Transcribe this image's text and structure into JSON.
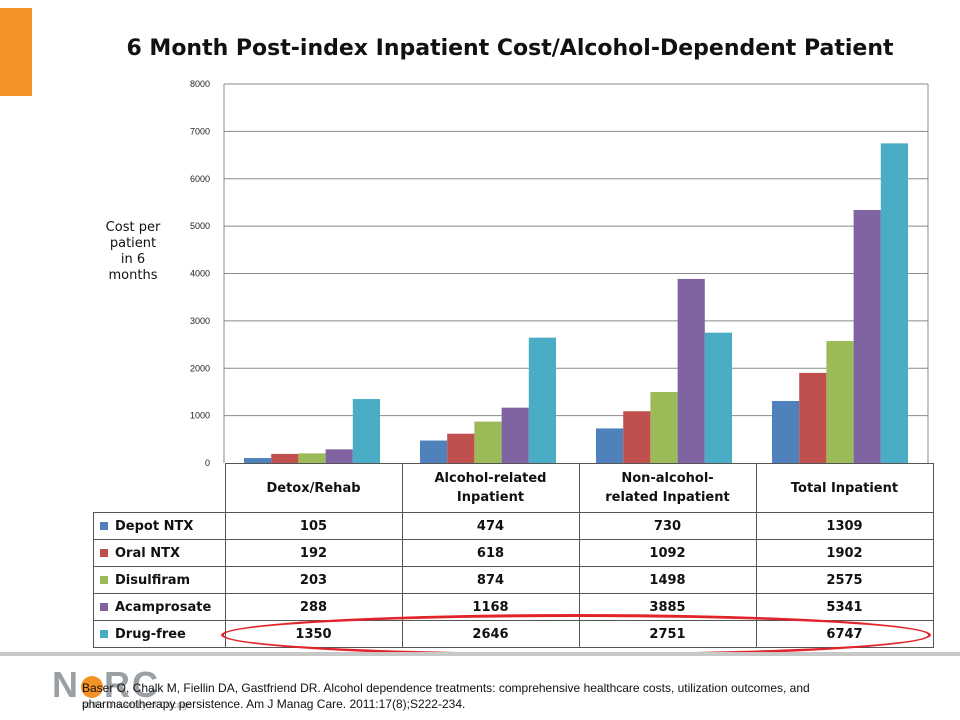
{
  "chart_data": {
    "type": "bar",
    "title": "6 Month Post-index Inpatient Cost/Alcohol-Dependent Patient",
    "ylabel": [
      "Cost per",
      "patient",
      "in 6 months"
    ],
    "xlabel": "",
    "ylim": [
      0,
      8000
    ],
    "yticks": [
      0,
      1000,
      2000,
      3000,
      4000,
      5000,
      6000,
      7000,
      8000
    ],
    "grid": true,
    "legend": "data table below chart",
    "categories": [
      [
        "Detox/Rehab"
      ],
      [
        "Alcohol-related",
        "Inpatient"
      ],
      [
        "Non-alcohol-",
        "related Inpatient"
      ],
      [
        "Total Inpatient"
      ]
    ],
    "series": [
      {
        "name": "Depot NTX",
        "color": "#4f81bd",
        "values": [
          105,
          474,
          730,
          1309
        ]
      },
      {
        "name": "Oral NTX",
        "color": "#c0504d",
        "values": [
          192,
          618,
          1092,
          1902
        ]
      },
      {
        "name": "Disulfiram",
        "color": "#9bbb59",
        "values": [
          203,
          874,
          1498,
          2575
        ]
      },
      {
        "name": "Acamprosate",
        "color": "#8064a2",
        "values": [
          288,
          1168,
          3885,
          5341
        ]
      },
      {
        "name": "Drug-free",
        "color": "#4bacc6",
        "values": [
          1350,
          2646,
          2751,
          6747
        ]
      }
    ]
  },
  "citation": "Baser O, Chalk M, Fiellin DA, Gastfriend DR.  Alcohol dependence treatments: comprehensive healthcare costs, utilization outcomes, and pharmacotherapy persistence.   Am J Manag Care. 2011:17(8);S222-234.",
  "logo": {
    "text_left": "N",
    "text_right": "RC",
    "subtitle": "at the University of Chicago"
  },
  "colors": {
    "accent": "#f39325",
    "highlight_oval": "#e3232a"
  }
}
